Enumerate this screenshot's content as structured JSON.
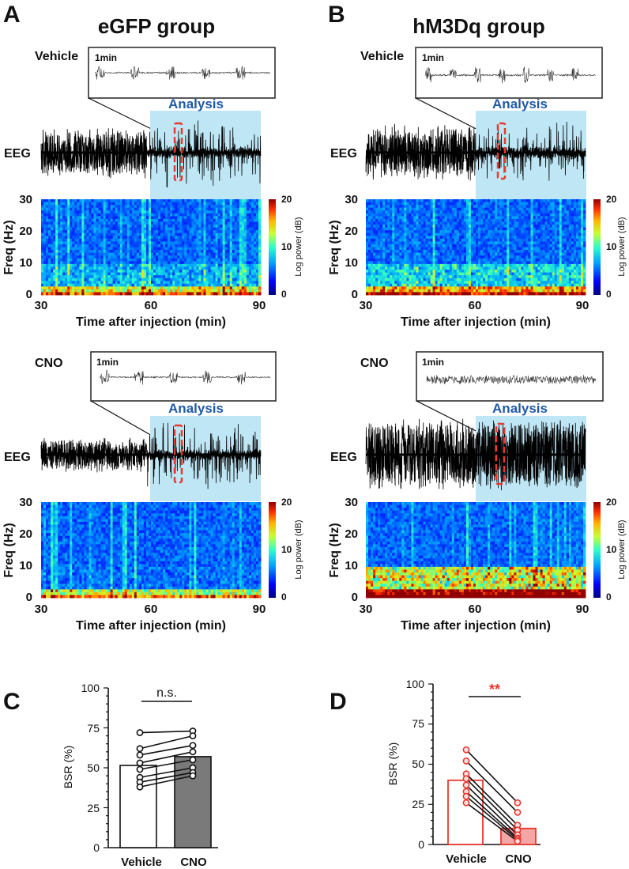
{
  "panel_letters": {
    "a": "A",
    "b": "B",
    "c": "C",
    "d": "D"
  },
  "colors": {
    "analysis_shade": "#bfe6f5",
    "analysis_text": "#1f5aa6",
    "highlight": "#e8382f",
    "egfp_bar": "#7a7a7a",
    "hm3dq_bar": "#f4a6a6"
  },
  "chart_data": [
    {
      "id": "A",
      "type": "heatmap",
      "title": "eGFP group",
      "conditions": [
        {
          "name": "Vehicle",
          "inset_scale": "1min",
          "eeg_label": "EEG",
          "analysis_label": "Analysis",
          "analysis_window_min": [
            60,
            90
          ],
          "highlight_min": 67,
          "ylabel": "Freq (Hz)",
          "xlabel": "Time after injection (min)",
          "x_ticks": [
            "30",
            "60",
            "90"
          ],
          "y_ticks": [
            "0",
            "10",
            "20",
            "30"
          ],
          "xlim": [
            30,
            90
          ],
          "ylim": [
            0,
            30
          ],
          "colorbar_label": "Log power (dB)",
          "colorbar_ticks": [
            "0",
            "10",
            "20"
          ]
        },
        {
          "name": "CNO",
          "inset_scale": "1min",
          "eeg_label": "EEG",
          "analysis_label": "Analysis",
          "analysis_window_min": [
            60,
            90
          ],
          "highlight_min": 67,
          "ylabel": "Freq (Hz)",
          "xlabel": "Time after injection (min)",
          "x_ticks": [
            "30",
            "60",
            "90"
          ],
          "y_ticks": [
            "0",
            "10",
            "20",
            "30"
          ],
          "xlim": [
            30,
            90
          ],
          "ylim": [
            0,
            30
          ],
          "colorbar_label": "Log power (dB)",
          "colorbar_ticks": [
            "0",
            "10",
            "20"
          ]
        }
      ]
    },
    {
      "id": "B",
      "type": "heatmap",
      "title": "hM3Dq group",
      "conditions": [
        {
          "name": "Vehicle",
          "inset_scale": "1min",
          "eeg_label": "EEG",
          "analysis_label": "Analysis",
          "analysis_window_min": [
            60,
            90
          ],
          "highlight_min": 67,
          "ylabel": "Freq (Hz)",
          "xlabel": "Time after injection (min)",
          "x_ticks": [
            "30",
            "60",
            "90"
          ],
          "y_ticks": [
            "0",
            "10",
            "20",
            "30"
          ],
          "xlim": [
            30,
            90
          ],
          "ylim": [
            0,
            30
          ],
          "colorbar_label": "Log power (dB)",
          "colorbar_ticks": [
            "0",
            "10",
            "20"
          ]
        },
        {
          "name": "CNO",
          "inset_scale": "1min",
          "eeg_label": "EEG",
          "analysis_label": "Analysis",
          "analysis_window_min": [
            60,
            90
          ],
          "highlight_min": 67,
          "ylabel": "Freq (Hz)",
          "xlabel": "Time after injection (min)",
          "x_ticks": [
            "30",
            "60",
            "90"
          ],
          "y_ticks": [
            "0",
            "10",
            "20",
            "30"
          ],
          "xlim": [
            30,
            90
          ],
          "ylim": [
            0,
            30
          ],
          "colorbar_label": "Log power (dB)",
          "colorbar_ticks": [
            "0",
            "10",
            "20"
          ]
        }
      ]
    },
    {
      "id": "C",
      "type": "bar",
      "categories": [
        "Vehicle",
        "CNO"
      ],
      "values": [
        51.5,
        57
      ],
      "ylabel": "BSR (%)",
      "ylim": [
        0,
        100
      ],
      "y_ticks": [
        "0",
        "25",
        "50",
        "75",
        "100"
      ],
      "significance": "n.s.",
      "paired": [
        [
          72,
          73
        ],
        [
          62,
          70
        ],
        [
          58,
          64
        ],
        [
          53,
          60
        ],
        [
          49,
          55
        ],
        [
          44,
          50
        ],
        [
          41,
          47
        ],
        [
          38,
          45
        ]
      ]
    },
    {
      "id": "D",
      "type": "bar",
      "categories": [
        "Vehicle",
        "CNO"
      ],
      "values": [
        40,
        10
      ],
      "ylabel": "BSR (%)",
      "ylim": [
        0,
        100
      ],
      "y_ticks": [
        "0",
        "25",
        "50",
        "75",
        "100"
      ],
      "significance": "**",
      "paired": [
        [
          59,
          26
        ],
        [
          52,
          20
        ],
        [
          44,
          12
        ],
        [
          41,
          9
        ],
        [
          37,
          6
        ],
        [
          33,
          4
        ],
        [
          30,
          3
        ],
        [
          26,
          2
        ]
      ]
    }
  ]
}
